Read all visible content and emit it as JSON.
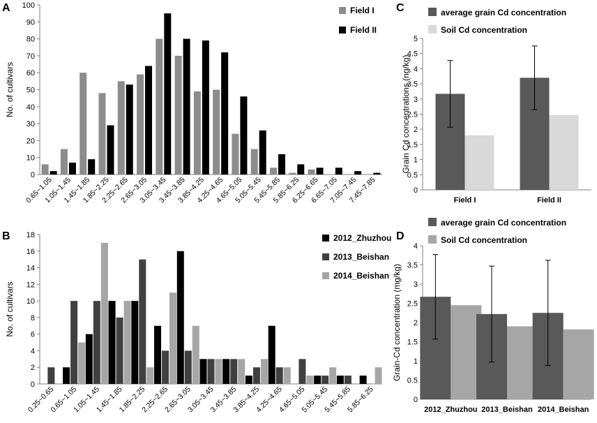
{
  "chart_data": [
    {
      "panel": "A",
      "type": "bar",
      "ylabel": "No. of cultivars",
      "xlabel": "",
      "ylim": [
        0,
        100
      ],
      "yticks": [
        0,
        10,
        20,
        30,
        40,
        50,
        60,
        70,
        80,
        90,
        100
      ],
      "legend_position": "top-right",
      "categories": [
        "0.65~1.05",
        "1.05~1.45",
        "1.45~1.85",
        "1.85~2.25",
        "2.25~2.65",
        "2.65~3.05",
        "3.05~3.45",
        "3.45~3.85",
        "3.85~4.25",
        "4.25~4.65",
        "4.65~5.05",
        "5.05~5.45",
        "5.45~5.85",
        "5.85~6.25",
        "6.25~6.65",
        "6.65~7.05",
        "7.05~7.45",
        "7.45~7.85"
      ],
      "series": [
        {
          "name": "Field I",
          "color": "#8c8c8c",
          "values": [
            6,
            15,
            60,
            48,
            55,
            59,
            80,
            70,
            49,
            50,
            24,
            15,
            4,
            1,
            3,
            0,
            0,
            0
          ]
        },
        {
          "name": "Field II",
          "color": "#000000",
          "values": [
            2,
            7,
            9,
            29,
            53,
            64,
            95,
            80,
            79,
            72,
            46,
            26,
            12,
            6,
            4,
            4,
            2,
            1
          ]
        }
      ]
    },
    {
      "panel": "B",
      "type": "bar",
      "ylabel": "No. of cultivars",
      "xlabel": "",
      "ylim": [
        0,
        18
      ],
      "yticks": [
        0,
        2,
        4,
        6,
        8,
        10,
        12,
        14,
        16,
        18
      ],
      "legend_position": "top-right",
      "categories": [
        "0.25~0.65",
        "0.65~1.05",
        "1.05~1.45",
        "1.45~1.85",
        "1.85~2.25",
        "2.25~2.65",
        "2.65~3.05",
        "3.05~3.45",
        "3.45~3.85",
        "3.85~4.25",
        "4.25~4.65",
        "4.65~5.05",
        "5.05~5.45",
        "5.45~5.85",
        "5.85~6.25"
      ],
      "series": [
        {
          "name": "2012_Zhuzhou",
          "color": "#000000",
          "values": [
            0,
            2,
            6,
            10,
            10,
            7,
            16,
            3,
            3,
            1,
            7,
            0,
            1,
            1,
            1
          ]
        },
        {
          "name": "2013_Beishan",
          "color": "#404040",
          "values": [
            2,
            10,
            10,
            8,
            15,
            4,
            4,
            3,
            3,
            2,
            2,
            3,
            1,
            1,
            0
          ]
        },
        {
          "name": "2014_Beishan",
          "color": "#a6a6a6",
          "values": [
            0,
            5,
            17,
            10,
            2,
            11,
            7,
            3,
            3,
            3,
            2,
            1,
            2,
            0,
            2
          ]
        }
      ]
    },
    {
      "panel": "C",
      "type": "bar",
      "ylabel": "Grain Cd concentrations (ng/kg)",
      "xlabel": "",
      "ylim": [
        0,
        5
      ],
      "yticks": [
        0,
        0.5,
        1,
        1.5,
        2,
        2.5,
        3,
        3.5,
        4,
        4.5,
        5
      ],
      "legend_position": "top",
      "categories": [
        "Field I",
        "Field II"
      ],
      "series": [
        {
          "name": "average grain Cd concentration",
          "color": "#595959",
          "values": [
            3.17,
            3.7
          ],
          "error": [
            1.1,
            1.05
          ]
        },
        {
          "name": "Soil Cd concentration",
          "color": "#d9d9d9",
          "values": [
            1.8,
            2.47
          ]
        }
      ]
    },
    {
      "panel": "D",
      "type": "bar",
      "ylabel": "Grain-Cd concentration (mg/kg)",
      "xlabel": "",
      "ylim": [
        0,
        4
      ],
      "yticks": [
        0,
        0.5,
        1,
        1.5,
        2,
        2.5,
        3,
        3.5,
        4
      ],
      "legend_position": "top",
      "categories": [
        "2012_Zhuzhou",
        "2013_Beishan",
        "2014_Beishan"
      ],
      "series": [
        {
          "name": "average grain Cd concentration",
          "color": "#595959",
          "values": [
            2.67,
            2.22,
            2.25
          ],
          "error": [
            1.1,
            1.25,
            1.37
          ]
        },
        {
          "name": "Soil Cd concentration",
          "color": "#a6a6a6",
          "values": [
            2.45,
            1.9,
            1.82
          ]
        }
      ]
    }
  ]
}
